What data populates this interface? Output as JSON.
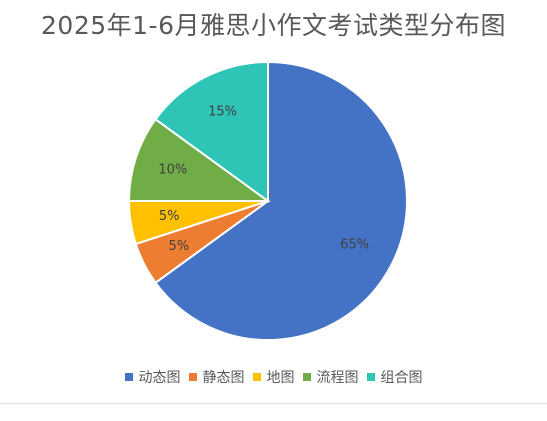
{
  "chart_data": {
    "type": "pie",
    "title": "2025年1-6月雅思小作文考试类型分布图",
    "slices": [
      {
        "name": "动态图",
        "value": 65,
        "label": "65%",
        "color": "#4472C4"
      },
      {
        "name": "静态图",
        "value": 5,
        "label": "5%",
        "color": "#ED7D31"
      },
      {
        "name": "地图",
        "value": 5,
        "label": "5%",
        "color": "#FFC000"
      },
      {
        "name": "流程图",
        "value": 10,
        "label": "10%",
        "color": "#70AD47"
      },
      {
        "name": "组合图",
        "value": 15,
        "label": "15%",
        "color": "#2EC4B6"
      }
    ],
    "legend_position": "bottom"
  }
}
